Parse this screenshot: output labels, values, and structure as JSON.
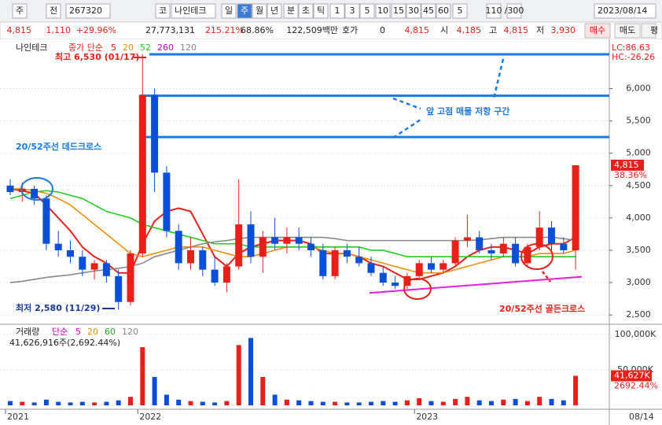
{
  "toolbar": {
    "row1": [
      "주",
      "전",
      "267320",
      "코",
      "나인테크",
      "일",
      "주",
      "월",
      "년",
      "분",
      "초",
      "틱",
      "1",
      "3",
      "5",
      "10",
      "15",
      "30",
      "45",
      "60",
      "5",
      "110",
      "/300",
      "2023/08/14"
    ],
    "row2": [
      "4,815",
      "1,110",
      "+29.96%",
      "27,773,131",
      "215.21%",
      "68.86%",
      "122,509백만",
      "호가",
      "0",
      "4,815",
      "시",
      "4,185",
      "고",
      "4,815",
      "저",
      "3,930",
      "매수",
      "매도",
      "평"
    ]
  },
  "chart_data": [
    {
      "type": "candlestick",
      "legend_name": "나인테크",
      "legend_title": "종가 단순",
      "categories": [
        "2021",
        null,
        null,
        null,
        null,
        null,
        null,
        null,
        null,
        null,
        null,
        "2022",
        null,
        null,
        null,
        null,
        null,
        null,
        null,
        null,
        null,
        null,
        null,
        null,
        null,
        null,
        null,
        null,
        null,
        null,
        null,
        null,
        null,
        null,
        "2023",
        null,
        null,
        null,
        null,
        null,
        null,
        null,
        null,
        null,
        null,
        null,
        null,
        null
      ],
      "open": [
        4500,
        4400,
        4450,
        4300,
        3600,
        3500,
        3400,
        3200,
        3300,
        3100,
        2700,
        3450,
        5900,
        4700,
        3800,
        3300,
        3500,
        3200,
        3000,
        3250,
        3900,
        3400,
        3700,
        3600,
        3700,
        3600,
        3500,
        3100,
        3500,
        3400,
        3300,
        3150,
        3000,
        2950,
        3100,
        3300,
        3200,
        3300,
        3650,
        3700,
        3500,
        3450,
        3600,
        3300,
        3550,
        3850,
        3600,
        3500
      ],
      "high": [
        4600,
        4550,
        4500,
        4350,
        3800,
        3650,
        3500,
        3350,
        3350,
        3200,
        3500,
        6530,
        6000,
        4800,
        3900,
        3700,
        3550,
        3400,
        3300,
        4600,
        4100,
        3800,
        4000,
        3850,
        3850,
        3700,
        3600,
        3550,
        3600,
        3550,
        3400,
        3250,
        3100,
        3150,
        3350,
        3400,
        3350,
        3700,
        4050,
        3800,
        3600,
        3700,
        3700,
        3600,
        4100,
        3950,
        3700,
        4815
      ],
      "low": [
        4350,
        4250,
        4200,
        3500,
        3400,
        3300,
        3100,
        3050,
        3000,
        2580,
        2650,
        3400,
        4400,
        3700,
        3200,
        3200,
        3100,
        2950,
        2850,
        3200,
        3300,
        3150,
        3500,
        3450,
        3500,
        3400,
        3050,
        3050,
        3300,
        3250,
        3100,
        2950,
        2900,
        2900,
        3050,
        3150,
        3150,
        3250,
        3550,
        3450,
        3350,
        3400,
        3250,
        3250,
        3500,
        3500,
        3450,
        3200
      ],
      "close": [
        4400,
        4450,
        4300,
        3600,
        3500,
        3400,
        3200,
        3300,
        3100,
        2700,
        3450,
        5900,
        4700,
        3800,
        3300,
        3500,
        3200,
        3000,
        3250,
        3900,
        3400,
        3700,
        3600,
        3700,
        3600,
        3500,
        3100,
        3500,
        3400,
        3300,
        3150,
        3000,
        2950,
        3100,
        3300,
        3200,
        3300,
        3650,
        3700,
        3500,
        3450,
        3600,
        3300,
        3550,
        3850,
        3600,
        3500,
        4815
      ],
      "up_color": "#e8201a",
      "down_color": "#0a4fd8",
      "series": [
        {
          "name": "5",
          "color": "#e8201a",
          "values": [
            4450,
            4420,
            4380,
            4200,
            4000,
            3800,
            3550,
            3400,
            3300,
            3150,
            3150,
            3600,
            3950,
            4100,
            4150,
            4100,
            3750,
            3400,
            3250,
            3450,
            3550,
            3600,
            3650,
            3650,
            3650,
            3600,
            3450,
            3450,
            3450,
            3400,
            3300,
            3250,
            3150,
            3050,
            3050,
            3100,
            3150,
            3250,
            3400,
            3500,
            3550,
            3550,
            3500,
            3450,
            3550,
            3600,
            3600,
            3700
          ]
        },
        {
          "name": "20",
          "color": "#f0900a",
          "values": [
            4450,
            4450,
            4420,
            4380,
            4300,
            4200,
            4050,
            3900,
            3750,
            3600,
            3450,
            3400,
            3450,
            3500,
            3550,
            3550,
            3550,
            3500,
            3450,
            3400,
            3400,
            3450,
            3500,
            3550,
            3550,
            3550,
            3500,
            3450,
            3450,
            3400,
            3350,
            3300,
            3250,
            3200,
            3150,
            3150,
            3150,
            3200,
            3250,
            3300,
            3350,
            3400,
            3400,
            3400,
            3450,
            3450,
            3450,
            3500
          ]
        },
        {
          "name": "52",
          "color": "#22cc22",
          "values": [
            4300,
            4350,
            4400,
            4420,
            4400,
            4350,
            4300,
            4200,
            4100,
            4050,
            4000,
            3900,
            3850,
            3800,
            3750,
            3700,
            3650,
            3600,
            3600,
            3600,
            3550,
            3550,
            3550,
            3550,
            3550,
            3550,
            3550,
            3550,
            3550,
            3550,
            3500,
            3500,
            3450,
            3400,
            3400,
            3400,
            3400,
            3400,
            3400,
            3400,
            3400,
            3400,
            3400,
            3400,
            3400,
            3400,
            3400,
            3400
          ]
        },
        {
          "name": "260",
          "color": "#cc00cc"
        },
        {
          "name": "120",
          "color": "#888888",
          "values": [
            3000,
            3020,
            3050,
            3080,
            3100,
            3120,
            3150,
            3180,
            3200,
            3220,
            3250,
            3300,
            3400,
            3450,
            3500,
            3550,
            3600,
            3630,
            3650,
            3680,
            3700,
            3700,
            3700,
            3700,
            3700,
            3700,
            3700,
            3680,
            3650,
            3650,
            3650,
            3650,
            3650,
            3650,
            3650,
            3650,
            3650,
            3650,
            3650,
            3660,
            3680,
            3700,
            3700,
            3700,
            3700,
            3700,
            3680,
            3650
          ]
        }
      ],
      "ylim": [
        2380,
        6700
      ],
      "yticks": [
        {
          "value": 2500,
          "label": "2,500"
        },
        {
          "value": 3000,
          "label": "3,000"
        },
        {
          "value": 3500,
          "label": "3,500"
        },
        {
          "value": 4000,
          "label": "4,000"
        },
        {
          "value": 4500,
          "label": "4,500"
        },
        {
          "value": 5000,
          "label": "5,000"
        },
        {
          "value": 5500,
          "label": "5,500"
        },
        {
          "value": 6000,
          "label": "6,000"
        }
      ],
      "annotations": [
        "최고 6,530 (01/17)",
        "최저 2,580 (11/29)",
        "20/52주선 데드크로스",
        "20/52주선 골든크로스",
        "앞 고점 매물 저항 구간"
      ],
      "resistance_lines": [
        6530,
        5890,
        5250
      ],
      "support_line": [
        2840,
        3090
      ],
      "corner_labels": [
        "LC:86.63",
        "HC:-26.26"
      ],
      "current_label": {
        "value": 4815,
        "label": "4,815"
      },
      "current_pct": "38.36%"
    },
    {
      "type": "volume-bar",
      "legend_name": "거래량",
      "legend_title": "단순",
      "legend": [
        {
          "name": "5",
          "color": "#cc00cc"
        },
        {
          "name": "20",
          "color": "#f0900a"
        },
        {
          "name": "60",
          "color": "#22aa22"
        },
        {
          "name": "120",
          "color": "#888888"
        }
      ],
      "subtitle": "41,626,916주(2,692.44%)",
      "values": [
        6000,
        5000,
        4000,
        8000,
        5000,
        4000,
        5000,
        4000,
        5000,
        7000,
        12000,
        82000,
        40000,
        15000,
        8000,
        6000,
        5000,
        4000,
        6000,
        85000,
        95000,
        40000,
        15000,
        8000,
        7000,
        6000,
        5000,
        5000,
        4000,
        4000,
        5000,
        6000,
        5000,
        7000,
        10000,
        6000,
        5000,
        9000,
        12000,
        7000,
        6000,
        8000,
        9000,
        6000,
        12000,
        9000,
        7000,
        41627
      ],
      "ylim": [
        0,
        111000
      ],
      "yticks": [
        {
          "value": 50000,
          "label": "50,000K"
        },
        {
          "value": 100000,
          "label": "100,000K"
        }
      ],
      "current_label": {
        "value": 41627,
        "label": "41,627K"
      },
      "current_pct": "2692.44%",
      "date_label": "08/14"
    }
  ]
}
